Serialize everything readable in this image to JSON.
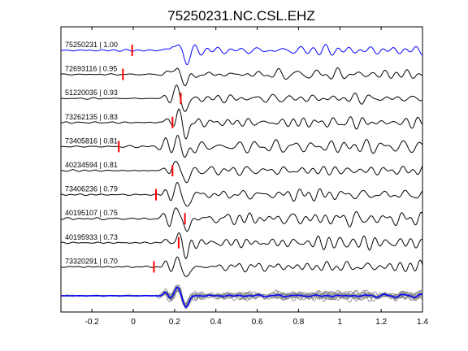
{
  "chart_data": {
    "type": "line",
    "title": "75250231.NC.CSL.EHZ",
    "xlabel": "",
    "ylabel": "",
    "xlim": [
      -0.35,
      1.4
    ],
    "xticks": [
      -0.2,
      0,
      0.2,
      0.4,
      0.6,
      0.8,
      1,
      1.2,
      1.4
    ],
    "xtick_labels": [
      "-0.2",
      "0",
      "0.2",
      "0.4",
      "0.6",
      "0.8",
      "1",
      "1.2",
      "1.4"
    ],
    "grid": false,
    "traces": [
      {
        "label": "75250231 | 1.00",
        "pick": -0.005,
        "color": "#0000ff"
      },
      {
        "label": "72693116 | 0.95",
        "pick": -0.05,
        "color": "#000000"
      },
      {
        "label": "51220035 | 0.93",
        "pick": 0.23,
        "color": "#000000"
      },
      {
        "label": "73262135 | 0.83",
        "pick": 0.19,
        "color": "#000000"
      },
      {
        "label": "73405816 | 0.81",
        "pick": -0.07,
        "color": "#000000"
      },
      {
        "label": "40234594 | 0.81",
        "pick": 0.19,
        "color": "#000000"
      },
      {
        "label": "73406236 | 0.79",
        "pick": 0.11,
        "color": "#000000"
      },
      {
        "label": "40195107 | 0.75",
        "pick": 0.25,
        "color": "#000000"
      },
      {
        "label": "40195933 | 0.73",
        "pick": 0.22,
        "color": "#000000"
      },
      {
        "label": "73320291 | 0.70",
        "pick": 0.1,
        "color": "#000000"
      }
    ],
    "stack": {
      "trace_color": "#808080",
      "mean_color": "#0000ff"
    },
    "pick_color": "#ff0000"
  }
}
